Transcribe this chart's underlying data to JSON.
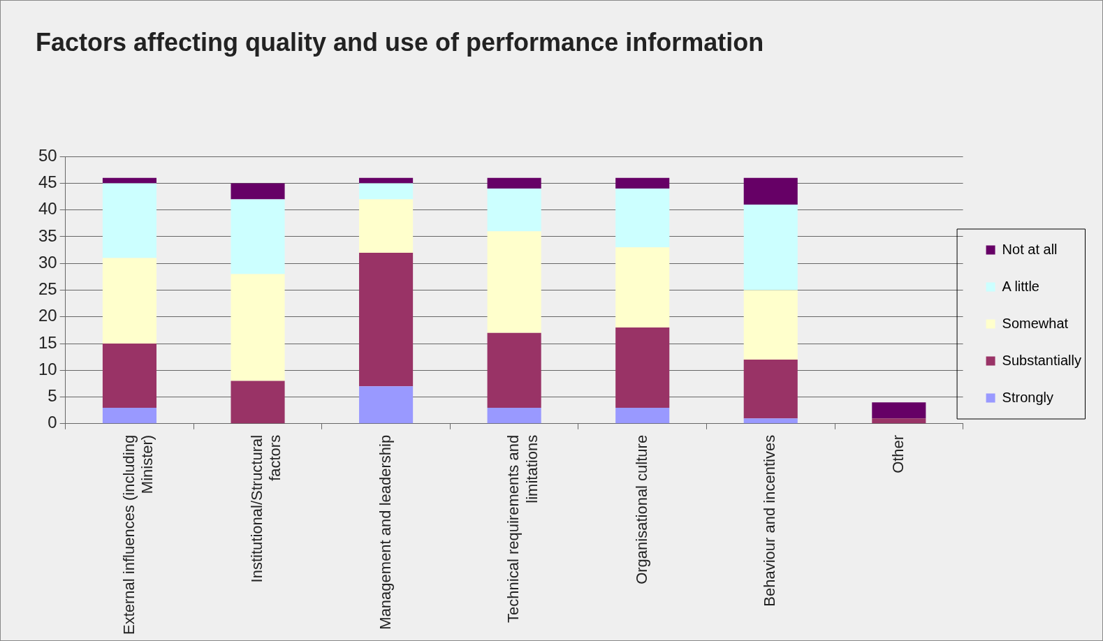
{
  "chart_data": {
    "type": "bar",
    "title": "Factors affecting quality and use of performance information",
    "categories": [
      "External influences (including Minister)",
      "Institutional/Structural factors",
      "Management and leadership",
      "Technical requirements and limitations",
      "Organisational culture",
      "Behaviour and incentives",
      "Other"
    ],
    "series": [
      {
        "name": "Strongly",
        "color": "#9999ff",
        "values": [
          3,
          0,
          7,
          3,
          3,
          1,
          0
        ]
      },
      {
        "name": "Substantially",
        "color": "#993366",
        "values": [
          12,
          8,
          25,
          14,
          15,
          11,
          1
        ]
      },
      {
        "name": "Somewhat",
        "color": "#ffffcc",
        "values": [
          16,
          20,
          10,
          19,
          15,
          13,
          0
        ]
      },
      {
        "name": "A little",
        "color": "#ccffff",
        "values": [
          14,
          14,
          3,
          8,
          11,
          16,
          0
        ]
      },
      {
        "name": "Not at all",
        "color": "#660066",
        "values": [
          1,
          3,
          1,
          2,
          2,
          5,
          3
        ]
      }
    ],
    "stacked": true,
    "ylim": [
      0,
      50
    ],
    "yticks": [
      0,
      5,
      10,
      15,
      20,
      25,
      30,
      35,
      40,
      45,
      50
    ],
    "grid": "y",
    "legend": "right"
  }
}
